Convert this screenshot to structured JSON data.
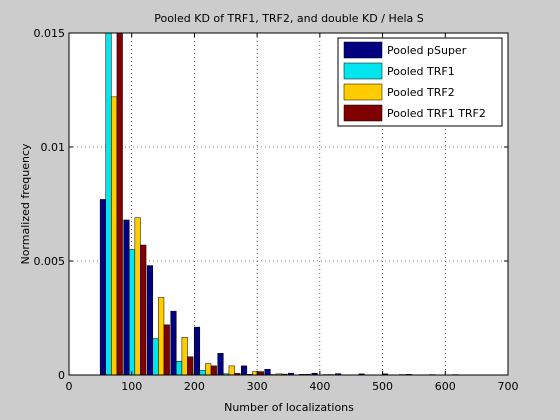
{
  "chart_data": {
    "type": "bar",
    "title": "Pooled KD of TRF1, TRF2, and double KD / Hela S",
    "xlabel": "Number of localizations",
    "ylabel": "Normalized frequency",
    "xlim": [
      0,
      700
    ],
    "ylim": [
      0,
      0.015
    ],
    "xticks": [
      0,
      100,
      200,
      300,
      400,
      500,
      600,
      700
    ],
    "yticks": [
      0,
      0.005,
      0.01,
      0.015
    ],
    "xtick_labels": [
      "0",
      "100",
      "200",
      "300",
      "400",
      "500",
      "600",
      "700"
    ],
    "ytick_labels": [
      "0",
      "0.005",
      "0.01",
      "0.015"
    ],
    "grid": true,
    "legend_position": "top-right",
    "bin_centers": [
      67.5,
      105,
      142.5,
      180,
      217.5,
      255,
      292.5,
      330,
      367.5,
      405,
      442.5,
      480,
      517.5,
      555,
      592.5,
      630,
      667.5,
      705
    ],
    "series": [
      {
        "name": "Pooled pSuper",
        "color": "#000080",
        "values": [
          0.0077,
          0.0068,
          0.0048,
          0.0028,
          0.0021,
          0.00095,
          0.0004,
          0.00025,
          8e-05,
          8e-05,
          6e-05,
          5e-05,
          5e-05,
          3e-05,
          2e-05,
          2e-05,
          1e-05,
          1e-05
        ]
      },
      {
        "name": "Pooled TRF1",
        "color": "#00e5ee",
        "values": [
          0.0168,
          0.0055,
          0.0016,
          0.0006,
          0.0002,
          5e-05,
          3e-05,
          2e-05,
          1e-05,
          0,
          0,
          0,
          0,
          0,
          0,
          0,
          0,
          0
        ]
      },
      {
        "name": "Pooled TRF2",
        "color": "#ffcc00",
        "values": [
          0.0122,
          0.0069,
          0.0034,
          0.00165,
          0.0005,
          0.0004,
          0.00015,
          5e-05,
          3e-05,
          2e-05,
          1e-05,
          1e-05,
          1e-05,
          0,
          0,
          0,
          0,
          0
        ]
      },
      {
        "name": "Pooled TRF1 TRF2",
        "color": "#800000",
        "values": [
          0.016,
          0.0057,
          0.0022,
          0.0008,
          0.0004,
          7e-05,
          0.00015,
          4e-05,
          3e-05,
          2e-05,
          1e-05,
          1e-05,
          2e-05,
          0,
          0,
          1e-05,
          0,
          0
        ]
      }
    ]
  }
}
